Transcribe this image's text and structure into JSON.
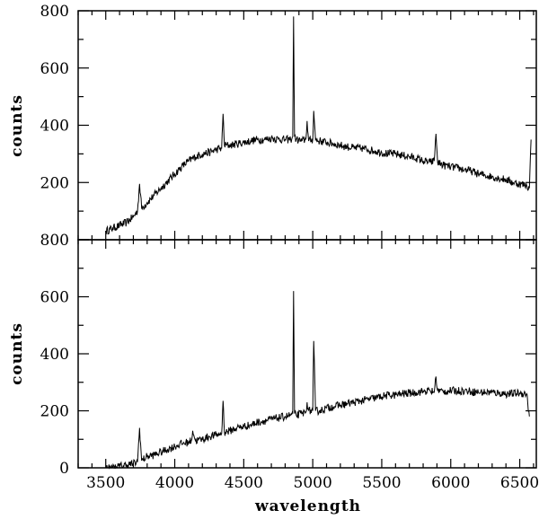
{
  "chart_data": [
    {
      "type": "line",
      "title": "",
      "xlabel": "",
      "ylabel": "counts",
      "xlim": [
        3300,
        6620
      ],
      "ylim": [
        0,
        800
      ],
      "x_ticks": [
        3500,
        4000,
        4500,
        5000,
        5500,
        6000,
        6500
      ],
      "y_ticks": [
        200,
        400,
        600,
        800
      ],
      "y_tick_labels": [
        "200",
        "400",
        "600",
        "800"
      ],
      "grid": false,
      "color": "#000000",
      "series": [
        {
          "x": [
            3500,
            3550,
            3600,
            3650,
            3700,
            3730,
            3745,
            3760,
            3800,
            3850,
            3900,
            3950,
            4000,
            4050,
            4100,
            4150,
            4200,
            4250,
            4300,
            4340,
            4350,
            4360,
            4400,
            4450,
            4500,
            4550,
            4600,
            4650,
            4700,
            4750,
            4800,
            4840,
            4855,
            4861,
            4868,
            4880,
            4920,
            4950,
            4959,
            4970,
            5000,
            5007,
            5020,
            5050,
            5100,
            5150,
            5200,
            5250,
            5300,
            5350,
            5400,
            5450,
            5500,
            5550,
            5600,
            5650,
            5700,
            5750,
            5800,
            5850,
            5880,
            5893,
            5905,
            5950,
            6000,
            6050,
            6100,
            6150,
            6200,
            6250,
            6300,
            6350,
            6400,
            6450,
            6500,
            6550,
            6570,
            6582
          ],
          "y": [
            30,
            40,
            50,
            60,
            80,
            100,
            195,
            110,
            130,
            155,
            180,
            205,
            230,
            255,
            275,
            290,
            300,
            305,
            315,
            320,
            440,
            330,
            330,
            335,
            340,
            345,
            350,
            350,
            355,
            352,
            350,
            350,
            360,
            780,
            360,
            350,
            345,
            350,
            415,
            345,
            350,
            450,
            350,
            345,
            340,
            335,
            330,
            325,
            320,
            320,
            315,
            310,
            305,
            300,
            300,
            295,
            290,
            285,
            275,
            270,
            275,
            370,
            270,
            260,
            255,
            250,
            245,
            240,
            230,
            225,
            220,
            215,
            210,
            200,
            195,
            190,
            180,
            350
          ]
        }
      ]
    },
    {
      "type": "line",
      "title": "",
      "xlabel": "wavelength",
      "ylabel": "counts",
      "xlim": [
        3300,
        6620
      ],
      "ylim": [
        0,
        800
      ],
      "x_ticks": [
        3500,
        4000,
        4500,
        5000,
        5500,
        6000,
        6500
      ],
      "x_tick_labels": [
        "3500",
        "4000",
        "4500",
        "5000",
        "5500",
        "6000",
        "6500"
      ],
      "y_ticks": [
        0,
        200,
        400,
        600,
        800
      ],
      "y_tick_labels": [
        "0",
        "200",
        "400",
        "600",
        "800"
      ],
      "grid": false,
      "color": "#000000",
      "series": [
        {
          "x": [
            3500,
            3550,
            3600,
            3650,
            3700,
            3730,
            3745,
            3760,
            3800,
            3850,
            3900,
            3950,
            4000,
            4050,
            4100,
            4120,
            4130,
            4150,
            4200,
            4250,
            4300,
            4340,
            4350,
            4360,
            4400,
            4450,
            4500,
            4550,
            4600,
            4650,
            4700,
            4750,
            4800,
            4840,
            4855,
            4861,
            4868,
            4880,
            4920,
            4950,
            4959,
            4970,
            5000,
            5007,
            5020,
            5050,
            5100,
            5150,
            5200,
            5250,
            5300,
            5350,
            5400,
            5450,
            5500,
            5550,
            5600,
            5650,
            5700,
            5750,
            5800,
            5850,
            5880,
            5893,
            5905,
            5950,
            6000,
            6050,
            6100,
            6150,
            6200,
            6250,
            6300,
            6350,
            6400,
            6450,
            6500,
            6550,
            6570
          ],
          "y": [
            0,
            0,
            5,
            10,
            15,
            20,
            140,
            25,
            40,
            45,
            55,
            65,
            75,
            85,
            90,
            95,
            130,
            95,
            100,
            110,
            115,
            120,
            235,
            125,
            130,
            140,
            145,
            150,
            160,
            165,
            170,
            175,
            180,
            185,
            190,
            620,
            190,
            185,
            190,
            195,
            230,
            200,
            200,
            445,
            200,
            200,
            210,
            215,
            220,
            225,
            230,
            235,
            240,
            245,
            250,
            255,
            255,
            260,
            262,
            265,
            268,
            270,
            265,
            320,
            270,
            268,
            270,
            270,
            270,
            268,
            265,
            265,
            265,
            262,
            260,
            260,
            262,
            260,
            180
          ]
        }
      ]
    }
  ]
}
